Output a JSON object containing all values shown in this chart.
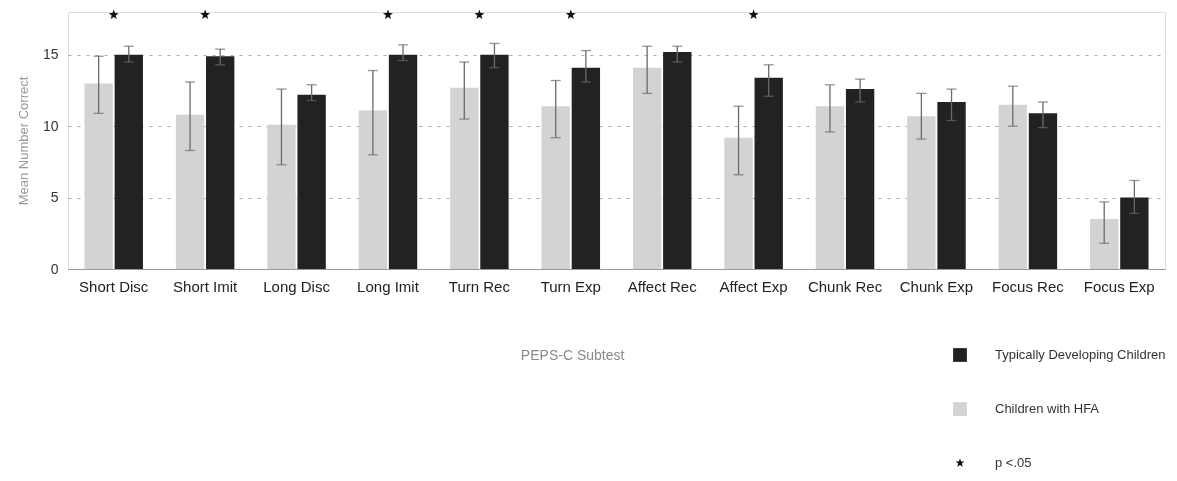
{
  "chart_data": {
    "type": "bar",
    "categories": [
      "Short Disc",
      "Short Imit",
      "Long Disc",
      "Long Imit",
      "Turn Rec",
      "Turn Exp",
      "Affect Rec",
      "Affect Exp",
      "Chunk Rec",
      "Chunk Exp",
      "Focus Rec",
      "Focus Exp"
    ],
    "xlabel": "PEPS-C Subtest",
    "ylabel": "Mean Number Correct",
    "ylim": [
      0,
      18
    ],
    "yticks": [
      0,
      5,
      10,
      15
    ],
    "grid": "y",
    "legend": "bottom right",
    "series": [
      {
        "name": "Children with HFA",
        "color": "#d3d3d3",
        "values": [
          13.0,
          10.8,
          10.1,
          11.1,
          12.7,
          11.4,
          14.1,
          9.2,
          11.4,
          10.7,
          11.5,
          3.5
        ],
        "errors": [
          [
            10.9,
            14.9
          ],
          [
            8.3,
            13.1
          ],
          [
            7.3,
            12.6
          ],
          [
            8.0,
            13.9
          ],
          [
            10.5,
            14.5
          ],
          [
            9.2,
            13.2
          ],
          [
            12.3,
            15.6
          ],
          [
            6.6,
            11.4
          ],
          [
            9.6,
            12.9
          ],
          [
            9.1,
            12.3
          ],
          [
            10.0,
            12.8
          ],
          [
            1.8,
            4.7
          ]
        ]
      },
      {
        "name": "Typically Developing Children",
        "color": "#222222",
        "values": [
          15.0,
          14.9,
          12.2,
          15.0,
          15.0,
          14.1,
          15.2,
          13.4,
          12.6,
          11.7,
          10.9,
          5.0
        ],
        "errors": [
          [
            14.5,
            15.6
          ],
          [
            14.3,
            15.4
          ],
          [
            11.8,
            12.9
          ],
          [
            14.6,
            15.7
          ],
          [
            14.1,
            15.8
          ],
          [
            13.1,
            15.3
          ],
          [
            14.5,
            15.6
          ],
          [
            12.1,
            14.3
          ],
          [
            11.7,
            13.3
          ],
          [
            10.4,
            12.6
          ],
          [
            9.9,
            11.7
          ],
          [
            3.9,
            6.2
          ]
        ]
      },
      {
        "name": "p <.05",
        "type": "scatter",
        "marker": "star",
        "color": "#111111",
        "x": [
          "Short Disc",
          "Short Imit",
          "Long Imit",
          "Turn Rec",
          "Turn Exp",
          "Affect Exp"
        ],
        "values": [
          17.8,
          17.8,
          17.8,
          17.8,
          17.8,
          17.8
        ]
      }
    ]
  }
}
